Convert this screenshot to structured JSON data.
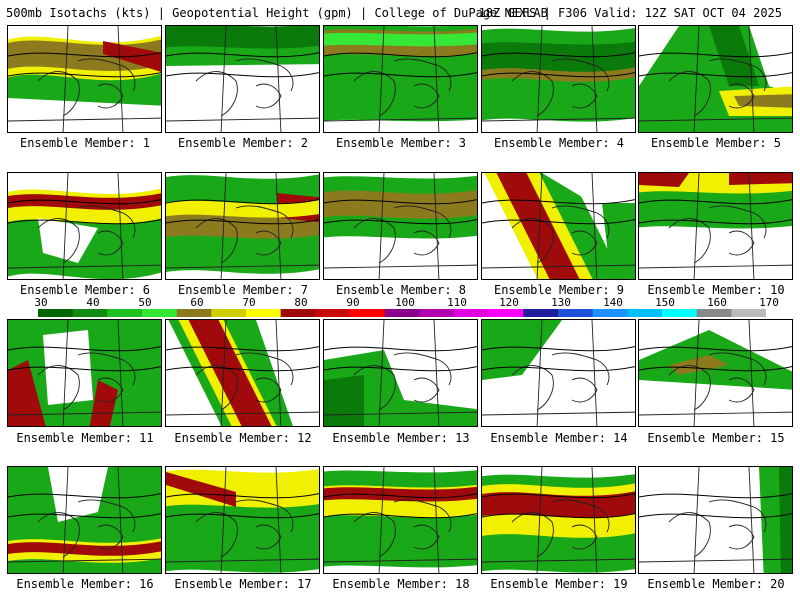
{
  "header": {
    "left": "500mb Isotachs (kts) | Geopotential Height (gpm) | College of DuPage NEXLAB",
    "right": "18Z GEFS | F306 Valid: 12Z SAT OCT 04 2025"
  },
  "colorbar": {
    "ticks": [
      "30",
      "40",
      "50",
      "60",
      "70",
      "80",
      "90",
      "100",
      "110",
      "120",
      "130",
      "140",
      "150",
      "160",
      "170"
    ],
    "colors": [
      "#006400",
      "#118c11",
      "#1fbf1f",
      "#35e835",
      "#8c7a1f",
      "#cfcf00",
      "#ffff00",
      "#9c0a0a",
      "#c80a0a",
      "#ff0000",
      "#8b008b",
      "#b000b0",
      "#e000e0",
      "#ff00ff",
      "#1e1e9c",
      "#1e50d8",
      "#1e90ff",
      "#00bfff",
      "#00ffff",
      "#888888",
      "#bbbbbb"
    ]
  },
  "colors": {
    "green_dark": "#0a7a0a",
    "green_mid": "#18a818",
    "green_light": "#35e835",
    "olive": "#8c7a1f",
    "yellow": "#f0f000",
    "red": "#a00a0a"
  },
  "members": [
    {
      "label": "Ensemble Member: 1"
    },
    {
      "label": "Ensemble Member: 2"
    },
    {
      "label": "Ensemble Member: 3"
    },
    {
      "label": "Ensemble Member: 4"
    },
    {
      "label": "Ensemble Member: 5"
    },
    {
      "label": "Ensemble Member: 6"
    },
    {
      "label": "Ensemble Member: 7"
    },
    {
      "label": "Ensemble Member: 8"
    },
    {
      "label": "Ensemble Member: 9"
    },
    {
      "label": "Ensemble Member: 10"
    },
    {
      "label": "Ensemble Member: 11"
    },
    {
      "label": "Ensemble Member: 12"
    },
    {
      "label": "Ensemble Member: 13"
    },
    {
      "label": "Ensemble Member: 14"
    },
    {
      "label": "Ensemble Member: 15"
    },
    {
      "label": "Ensemble Member: 16"
    },
    {
      "label": "Ensemble Member: 17"
    },
    {
      "label": "Ensemble Member: 18"
    },
    {
      "label": "Ensemble Member: 19"
    },
    {
      "label": "Ensemble Member: 20"
    }
  ]
}
